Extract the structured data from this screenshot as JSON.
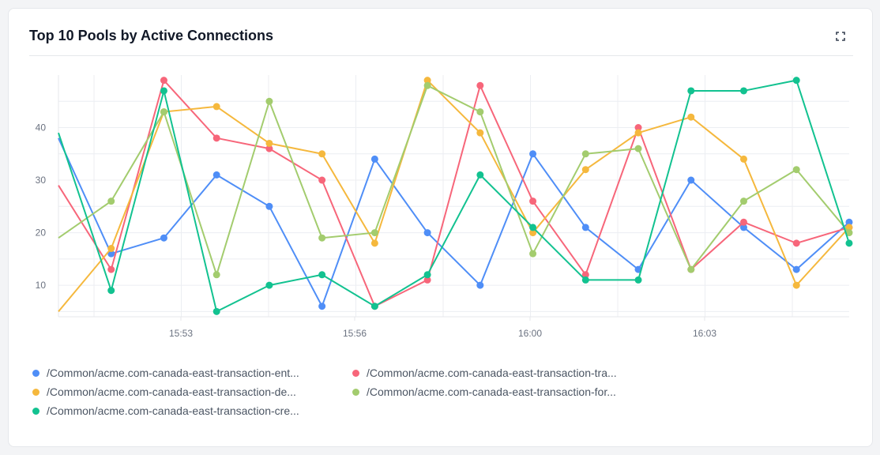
{
  "card": {
    "title": "Top 10 Pools by Active Connections",
    "expand_icon": "expand-icon"
  },
  "chart_data": {
    "type": "line",
    "title": "Top 10 Pools by Active Connections",
    "xlabel": "",
    "ylabel": "",
    "x_tick_labels": [
      "15:53",
      "15:56",
      "16:00",
      "16:03"
    ],
    "y_ticks": [
      10,
      20,
      30,
      40
    ],
    "ylim": [
      4,
      50
    ],
    "grid": true,
    "legend_placement": "bottom",
    "series": [
      {
        "name": "/Common/acme.com-canada-east-transaction-ent...",
        "color": "#4f8ef7",
        "values": [
          38,
          16,
          19,
          31,
          25,
          6,
          34,
          20,
          10,
          35,
          21,
          13,
          30,
          21,
          13,
          22
        ]
      },
      {
        "name": "/Common/acme.com-canada-east-transaction-tra...",
        "color": "#f7667a",
        "values": [
          29,
          13,
          49,
          38,
          36,
          30,
          6,
          11,
          48,
          26,
          12,
          40,
          13,
          22,
          18,
          21
        ]
      },
      {
        "name": "/Common/acme.com-canada-east-transaction-de...",
        "color": "#f5b83d",
        "values": [
          5,
          17,
          43,
          44,
          37,
          35,
          18,
          49,
          39,
          20,
          32,
          39,
          42,
          34,
          10,
          21
        ]
      },
      {
        "name": "/Common/acme.com-canada-east-transaction-for...",
        "color": "#a3cc6e",
        "values": [
          19,
          26,
          43,
          12,
          45,
          19,
          20,
          48,
          43,
          16,
          35,
          36,
          13,
          26,
          32,
          20
        ]
      },
      {
        "name": "/Common/acme.com-canada-east-transaction-cre...",
        "color": "#12c290",
        "values": [
          39,
          9,
          47,
          5,
          10,
          12,
          6,
          12,
          31,
          21,
          11,
          11,
          47,
          47,
          49,
          18
        ]
      }
    ]
  }
}
